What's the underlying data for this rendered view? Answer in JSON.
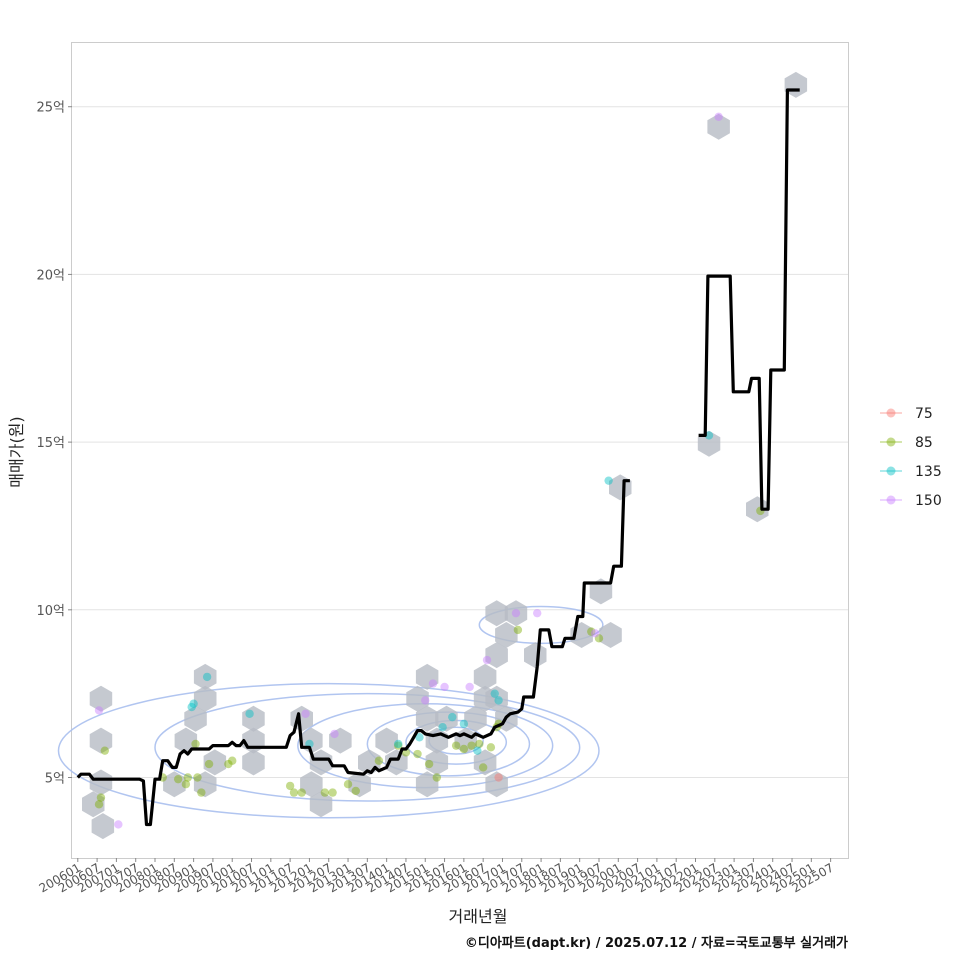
{
  "chart_data": {
    "type": "line",
    "title": "",
    "xlabel": "거래년월",
    "ylabel": "매매가(원)",
    "caption": "©디아파트(dapt.kr) / 2025.07.12 / 자료=국토교통부 실거래가",
    "y_unit_suffix": "억",
    "ylim": [
      2.6,
      26.9
    ],
    "y_ticks": [
      5,
      10,
      15,
      20,
      25
    ],
    "y_tick_labels": [
      "5억",
      "10억",
      "15억",
      "20억",
      "25억"
    ],
    "xlim": [
      2005.85,
      2025.95
    ],
    "x_ticks": [
      2006.0,
      2006.5,
      2007.0,
      2007.5,
      2008.0,
      2008.5,
      2009.0,
      2009.5,
      2010.0,
      2010.5,
      2011.0,
      2011.5,
      2012.0,
      2012.5,
      2013.0,
      2013.5,
      2014.0,
      2014.5,
      2015.0,
      2015.5,
      2016.0,
      2016.5,
      2017.0,
      2017.5,
      2018.0,
      2018.5,
      2019.0,
      2019.5,
      2020.0,
      2020.5,
      2021.0,
      2021.5,
      2022.0,
      2022.5,
      2023.0,
      2023.5,
      2024.0,
      2024.5,
      2025.0,
      2025.5
    ],
    "x_tick_labels": [
      "200601",
      "200607",
      "200701",
      "200707",
      "200801",
      "200807",
      "200901",
      "200907",
      "201001",
      "201007",
      "201101",
      "201107",
      "201201",
      "201207",
      "201301",
      "201307",
      "201401",
      "201407",
      "201501",
      "201507",
      "201601",
      "201607",
      "201701",
      "201707",
      "201801",
      "201807",
      "201901",
      "201907",
      "202001",
      "202007",
      "202101",
      "202107",
      "202201",
      "202207",
      "202301",
      "202307",
      "202401",
      "202407",
      "202501",
      "202507"
    ],
    "legend": {
      "position": "right",
      "entries": [
        {
          "label": "75",
          "color": "#F8766D"
        },
        {
          "label": "85",
          "color": "#7CAE00"
        },
        {
          "label": "135",
          "color": "#00BFC4"
        },
        {
          "label": "150",
          "color": "#C77CFF"
        }
      ]
    },
    "series": [
      {
        "name": "median price",
        "color": "#000000",
        "segments": [
          [
            [
              2006.0,
              5.0
            ],
            [
              2006.08,
              5.1
            ],
            [
              2006.3,
              5.1
            ],
            [
              2006.4,
              4.95
            ],
            [
              2006.8,
              4.95
            ],
            [
              2007.6,
              4.95
            ],
            [
              2007.7,
              4.9
            ],
            [
              2007.78,
              3.6
            ],
            [
              2007.88,
              3.6
            ],
            [
              2008.0,
              4.95
            ],
            [
              2008.12,
              4.95
            ],
            [
              2008.2,
              5.5
            ],
            [
              2008.33,
              5.5
            ],
            [
              2008.45,
              5.3
            ],
            [
              2008.55,
              5.3
            ],
            [
              2008.65,
              5.7
            ],
            [
              2008.75,
              5.8
            ],
            [
              2008.85,
              5.7
            ],
            [
              2008.95,
              5.85
            ],
            [
              2009.4,
              5.85
            ],
            [
              2009.5,
              5.95
            ],
            [
              2009.9,
              5.95
            ],
            [
              2010.0,
              6.05
            ],
            [
              2010.1,
              5.95
            ],
            [
              2010.2,
              5.95
            ],
            [
              2010.3,
              6.1
            ],
            [
              2010.4,
              5.9
            ],
            [
              2011.4,
              5.9
            ],
            [
              2011.5,
              6.25
            ],
            [
              2011.6,
              6.35
            ],
            [
              2011.72,
              6.9
            ],
            [
              2011.8,
              5.9
            ],
            [
              2012.0,
              5.9
            ],
            [
              2012.1,
              5.55
            ],
            [
              2012.5,
              5.55
            ],
            [
              2012.6,
              5.35
            ],
            [
              2012.9,
              5.35
            ],
            [
              2013.0,
              5.15
            ],
            [
              2013.4,
              5.1
            ],
            [
              2013.5,
              5.2
            ],
            [
              2013.6,
              5.15
            ],
            [
              2013.7,
              5.3
            ],
            [
              2013.8,
              5.2
            ],
            [
              2014.0,
              5.3
            ],
            [
              2014.1,
              5.55
            ],
            [
              2014.3,
              5.55
            ],
            [
              2014.4,
              5.85
            ],
            [
              2014.5,
              5.85
            ],
            [
              2014.6,
              6.0
            ],
            [
              2014.7,
              6.2
            ],
            [
              2014.8,
              6.4
            ],
            [
              2014.9,
              6.4
            ],
            [
              2015.0,
              6.3
            ],
            [
              2015.2,
              6.25
            ],
            [
              2015.4,
              6.3
            ],
            [
              2015.6,
              6.2
            ],
            [
              2015.8,
              6.3
            ],
            [
              2015.9,
              6.25
            ],
            [
              2016.0,
              6.3
            ],
            [
              2016.2,
              6.2
            ],
            [
              2016.3,
              6.3
            ],
            [
              2016.5,
              6.2
            ],
            [
              2016.7,
              6.3
            ],
            [
              2016.8,
              6.5
            ],
            [
              2017.0,
              6.6
            ],
            [
              2017.1,
              6.8
            ],
            [
              2017.2,
              6.9
            ],
            [
              2017.4,
              6.95
            ],
            [
              2017.5,
              7.05
            ],
            [
              2017.55,
              7.4
            ],
            [
              2017.8,
              7.4
            ],
            [
              2017.9,
              8.3
            ],
            [
              2017.98,
              9.4
            ],
            [
              2018.2,
              9.4
            ],
            [
              2018.28,
              8.9
            ],
            [
              2018.55,
              8.9
            ],
            [
              2018.62,
              9.15
            ],
            [
              2018.85,
              9.15
            ],
            [
              2018.95,
              9.8
            ],
            [
              2019.08,
              9.8
            ],
            [
              2019.12,
              10.8
            ],
            [
              2019.8,
              10.8
            ],
            [
              2019.88,
              11.3
            ],
            [
              2020.08,
              11.3
            ],
            [
              2020.15,
              13.85
            ],
            [
              2020.3,
              13.85
            ]
          ],
          [
            [
              2022.08,
              15.2
            ],
            [
              2022.25,
              15.2
            ],
            [
              2022.32,
              19.95
            ],
            [
              2022.9,
              19.95
            ],
            [
              2022.98,
              16.5
            ],
            [
              2023.38,
              16.5
            ],
            [
              2023.45,
              16.9
            ],
            [
              2023.65,
              16.9
            ],
            [
              2023.72,
              13.0
            ],
            [
              2023.88,
              13.0
            ],
            [
              2023.95,
              17.15
            ],
            [
              2024.3,
              17.15
            ],
            [
              2024.38,
              25.5
            ],
            [
              2024.7,
              25.5
            ]
          ]
        ]
      }
    ],
    "scatter": [
      {
        "group": "85",
        "points": [
          [
            2006.7,
            5.8
          ],
          [
            2006.6,
            4.4
          ],
          [
            2006.55,
            4.2
          ],
          [
            2008.2,
            5.0
          ],
          [
            2008.6,
            4.95
          ],
          [
            2008.8,
            4.8
          ],
          [
            2008.85,
            5.0
          ],
          [
            2009.05,
            6.0
          ],
          [
            2009.1,
            5.0
          ],
          [
            2009.2,
            4.55
          ],
          [
            2009.4,
            5.4
          ],
          [
            2009.9,
            5.4
          ],
          [
            2010.0,
            5.5
          ],
          [
            2011.5,
            4.75
          ],
          [
            2011.6,
            4.55
          ],
          [
            2011.8,
            4.55
          ],
          [
            2012.4,
            4.55
          ],
          [
            2012.6,
            4.55
          ],
          [
            2013.0,
            4.8
          ],
          [
            2013.2,
            4.6
          ],
          [
            2013.8,
            5.5
          ],
          [
            2014.3,
            5.95
          ],
          [
            2014.5,
            5.75
          ],
          [
            2014.8,
            5.7
          ],
          [
            2015.1,
            5.4
          ],
          [
            2015.3,
            5.0
          ],
          [
            2015.8,
            5.95
          ],
          [
            2016.0,
            5.85
          ],
          [
            2016.2,
            5.95
          ],
          [
            2016.4,
            6.0
          ],
          [
            2016.5,
            5.3
          ],
          [
            2016.7,
            5.9
          ],
          [
            2016.85,
            6.5
          ],
          [
            2016.9,
            6.6
          ],
          [
            2017.4,
            9.4
          ],
          [
            2019.3,
            9.35
          ],
          [
            2019.5,
            9.15
          ],
          [
            2023.68,
            12.95
          ]
        ]
      },
      {
        "group": "135",
        "points": [
          [
            2008.95,
            7.1
          ],
          [
            2009.0,
            7.2
          ],
          [
            2009.35,
            8.0
          ],
          [
            2010.45,
            6.9
          ],
          [
            2012.0,
            6.0
          ],
          [
            2014.3,
            6.0
          ],
          [
            2014.85,
            6.2
          ],
          [
            2015.45,
            6.5
          ],
          [
            2015.7,
            6.8
          ],
          [
            2016.0,
            6.6
          ],
          [
            2016.35,
            5.8
          ],
          [
            2016.8,
            7.5
          ],
          [
            2016.9,
            7.3
          ],
          [
            2019.75,
            13.85
          ],
          [
            2022.35,
            15.2
          ]
        ]
      },
      {
        "group": "150",
        "points": [
          [
            2006.55,
            7.0
          ],
          [
            2007.05,
            3.6
          ],
          [
            2011.9,
            6.9
          ],
          [
            2012.65,
            6.3
          ],
          [
            2015.0,
            7.3
          ],
          [
            2015.2,
            7.8
          ],
          [
            2015.5,
            7.7
          ],
          [
            2016.15,
            7.7
          ],
          [
            2016.6,
            8.5
          ],
          [
            2017.35,
            9.9
          ],
          [
            2017.9,
            9.9
          ],
          [
            2019.4,
            9.3
          ],
          [
            2022.6,
            24.7
          ]
        ]
      },
      {
        "group": "75",
        "points": [
          [
            2016.9,
            5.0
          ]
        ]
      }
    ],
    "hexbin_centers": [
      [
        2006.6,
        7.35
      ],
      [
        2006.6,
        6.1
      ],
      [
        2006.6,
        4.85
      ],
      [
        2006.4,
        4.2
      ],
      [
        2006.65,
        3.55
      ],
      [
        2008.5,
        4.8
      ],
      [
        2008.8,
        6.1
      ],
      [
        2009.05,
        6.75
      ],
      [
        2009.3,
        7.35
      ],
      [
        2009.3,
        8.0
      ],
      [
        2009.55,
        5.45
      ],
      [
        2009.3,
        4.8
      ],
      [
        2010.55,
        6.75
      ],
      [
        2010.55,
        6.1
      ],
      [
        2010.55,
        5.45
      ],
      [
        2011.8,
        6.75
      ],
      [
        2012.05,
        6.1
      ],
      [
        2012.3,
        5.45
      ],
      [
        2012.05,
        4.8
      ],
      [
        2012.3,
        4.2
      ],
      [
        2012.8,
        6.1
      ],
      [
        2013.3,
        4.8
      ],
      [
        2013.55,
        5.45
      ],
      [
        2014.0,
        6.1
      ],
      [
        2014.25,
        5.45
      ],
      [
        2014.8,
        7.35
      ],
      [
        2015.05,
        8.0
      ],
      [
        2015.05,
        6.75
      ],
      [
        2015.3,
        6.1
      ],
      [
        2015.55,
        6.75
      ],
      [
        2015.3,
        5.45
      ],
      [
        2015.05,
        4.8
      ],
      [
        2016.05,
        6.1
      ],
      [
        2016.3,
        6.75
      ],
      [
        2016.55,
        7.35
      ],
      [
        2016.55,
        8.0
      ],
      [
        2016.85,
        8.65
      ],
      [
        2016.85,
        9.9
      ],
      [
        2017.1,
        9.25
      ],
      [
        2017.35,
        9.9
      ],
      [
        2016.85,
        7.35
      ],
      [
        2017.1,
        6.75
      ],
      [
        2016.55,
        5.45
      ],
      [
        2016.85,
        4.8
      ],
      [
        2017.85,
        8.65
      ],
      [
        2019.05,
        9.25
      ],
      [
        2019.8,
        9.25
      ],
      [
        2019.55,
        10.55
      ],
      [
        2020.05,
        13.65
      ],
      [
        2022.35,
        14.95
      ],
      [
        2022.6,
        24.4
      ],
      [
        2023.6,
        13.0
      ],
      [
        2024.6,
        25.65
      ]
    ],
    "density_contours": [
      {
        "cx": 2015.8,
        "cy": 6.1,
        "rx": 0.7,
        "ry": 0.4
      },
      {
        "cx": 2015.8,
        "cy": 6.05,
        "rx": 1.3,
        "ry": 0.65
      },
      {
        "cx": 2015.6,
        "cy": 6.0,
        "rx": 2.1,
        "ry": 0.95
      },
      {
        "cx": 2015.0,
        "cy": 5.95,
        "rx": 3.3,
        "ry": 1.25
      },
      {
        "cx": 2013.5,
        "cy": 5.9,
        "rx": 5.5,
        "ry": 1.6
      },
      {
        "cx": 2012.5,
        "cy": 5.8,
        "rx": 7.0,
        "ry": 2.0
      },
      {
        "cx": 2018.0,
        "cy": 9.55,
        "rx": 1.6,
        "ry": 0.55
      }
    ]
  }
}
